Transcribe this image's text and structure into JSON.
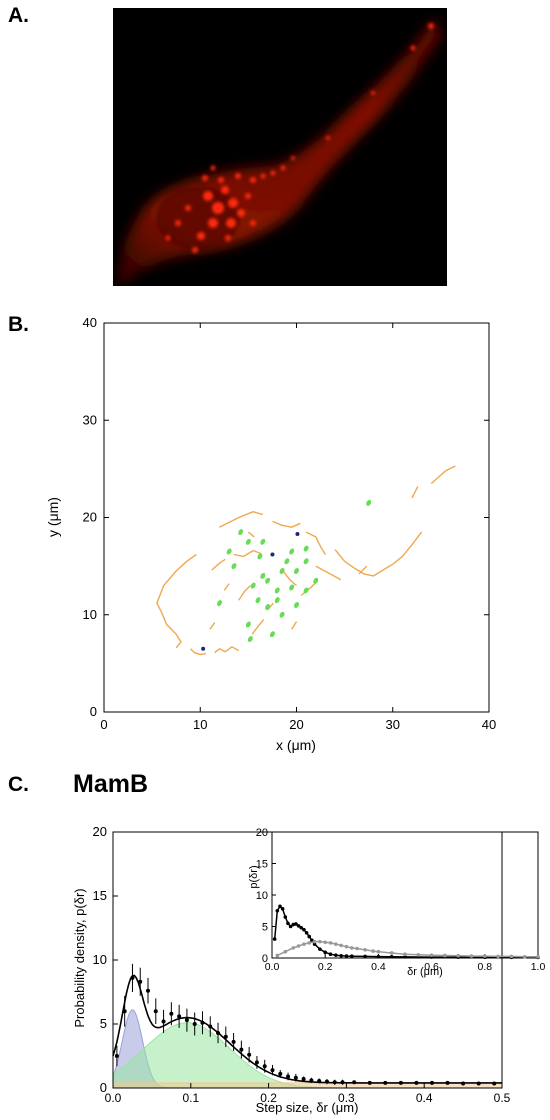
{
  "panels": {
    "a_label": "A.",
    "b_label": "B.",
    "c_label": "C.",
    "c_title": "MamB"
  },
  "chart_data": [
    {
      "id": "B",
      "type": "scatter",
      "title": "",
      "xlabel": "x (μm)",
      "ylabel": "y (μm)",
      "xlim": [
        0,
        40
      ],
      "ylim": [
        0,
        40
      ],
      "xticks": [
        0,
        10,
        20,
        30,
        40
      ],
      "yticks": [
        0,
        10,
        20,
        30,
        40
      ],
      "grid": false,
      "series": [
        {
          "color": "#f0a850",
          "kind": "trajectories",
          "tracks": [
            [
              [
                5.5,
                11.2
              ],
              [
                6.0,
                10.2
              ],
              [
                6.5,
                9.0
              ],
              [
                7.5,
                8.0
              ],
              [
                8.0,
                7.2
              ],
              [
                7.5,
                6.6
              ]
            ],
            [
              [
                5.5,
                11.2
              ],
              [
                6.2,
                13.0
              ],
              [
                7.5,
                14.5
              ],
              [
                8.6,
                15.5
              ],
              [
                9.6,
                16.2
              ]
            ],
            [
              [
                9.0,
                6.5
              ],
              [
                9.4,
                6.1
              ],
              [
                10.0,
                5.9
              ],
              [
                10.6,
                6.0
              ]
            ],
            [
              [
                11.5,
                6.1
              ],
              [
                12.0,
                6.5
              ],
              [
                12.6,
                6.2
              ],
              [
                13.3,
                6.7
              ],
              [
                14.0,
                6.3
              ]
            ],
            [
              [
                12.0,
                19.0
              ],
              [
                13.0,
                19.5
              ],
              [
                14.0,
                20.0
              ],
              [
                15.5,
                20.6
              ],
              [
                16.5,
                20.3
              ]
            ],
            [
              [
                11.2,
                14.6
              ],
              [
                12.0,
                15.3
              ],
              [
                12.6,
                15.7
              ]
            ],
            [
              [
                13.5,
                16.2
              ],
              [
                14.5,
                16.0
              ],
              [
                15.5,
                16.6
              ],
              [
                16.3,
                16.3
              ]
            ],
            [
              [
                14.0,
                11.5
              ],
              [
                14.6,
                12.4
              ],
              [
                15.2,
                13.0
              ]
            ],
            [
              [
                15.4,
                8.0
              ],
              [
                16.0,
                8.8
              ],
              [
                16.6,
                9.5
              ]
            ],
            [
              [
                17.5,
                19.6
              ],
              [
                18.5,
                19.2
              ],
              [
                19.5,
                19.0
              ],
              [
                20.4,
                19.4
              ]
            ],
            [
              [
                18.6,
                14.5
              ],
              [
                19.3,
                13.6
              ],
              [
                20.0,
                13.0
              ]
            ],
            [
              [
                20.5,
                12.0
              ],
              [
                21.5,
                12.8
              ],
              [
                22.2,
                13.5
              ]
            ],
            [
              [
                21.0,
                18.5
              ],
              [
                22.0,
                18.0
              ],
              [
                22.5,
                17.0
              ],
              [
                23.0,
                16.2
              ]
            ],
            [
              [
                22.0,
                15.0
              ],
              [
                23.5,
                14.2
              ],
              [
                24.6,
                13.6
              ]
            ],
            [
              [
                24.0,
                16.7
              ],
              [
                25.0,
                15.5
              ],
              [
                26.0,
                14.8
              ],
              [
                27.0,
                14.2
              ],
              [
                28.0,
                14.0
              ],
              [
                29.0,
                14.6
              ],
              [
                30.0,
                15.2
              ],
              [
                31.0,
                16.0
              ],
              [
                32.0,
                17.2
              ],
              [
                33.0,
                18.5
              ]
            ],
            [
              [
                26.5,
                14.2
              ],
              [
                27.3,
                15.0
              ]
            ],
            [
              [
                32.0,
                22.0
              ],
              [
                32.6,
                23.2
              ]
            ],
            [
              [
                34.0,
                23.5
              ],
              [
                35.5,
                24.8
              ],
              [
                36.5,
                25.3
              ]
            ],
            [
              [
                11.0,
                8.5
              ],
              [
                11.5,
                9.2
              ]
            ],
            [
              [
                12.5,
                12.5
              ],
              [
                13.0,
                13.2
              ]
            ],
            [
              [
                17.0,
                10.5
              ],
              [
                17.6,
                11.2
              ]
            ],
            [
              [
                19.5,
                8.5
              ],
              [
                20.0,
                9.3
              ]
            ],
            [
              [
                15.0,
                18.5
              ],
              [
                15.6,
                18.0
              ]
            ]
          ]
        },
        {
          "color": "#66dd55",
          "kind": "short tracks",
          "points": [
            [
              14.2,
              18.5
            ],
            [
              13.0,
              16.5
            ],
            [
              15.0,
              17.5
            ],
            [
              16.2,
              16.0
            ],
            [
              16.5,
              14.0
            ],
            [
              15.5,
              13.0
            ],
            [
              17.0,
              13.5
            ],
            [
              18.0,
              12.5
            ],
            [
              18.5,
              14.5
            ],
            [
              19.0,
              15.5
            ],
            [
              20.0,
              14.5
            ],
            [
              19.5,
              12.8
            ],
            [
              18.0,
              11.5
            ],
            [
              17.0,
              10.8
            ],
            [
              18.5,
              10.0
            ],
            [
              20.0,
              11.0
            ],
            [
              21.0,
              12.5
            ],
            [
              22.0,
              13.5
            ],
            [
              16.0,
              11.5
            ],
            [
              15.0,
              9.0
            ],
            [
              17.5,
              8.0
            ],
            [
              19.5,
              16.5
            ],
            [
              21.0,
              15.5
            ],
            [
              27.5,
              21.5
            ],
            [
              15.2,
              7.5
            ],
            [
              13.5,
              15.0
            ],
            [
              21.0,
              16.8
            ],
            [
              12.0,
              11.2
            ],
            [
              16.5,
              17.5
            ]
          ]
        },
        {
          "color": "#1a2a7a",
          "kind": "immobile",
          "points": [
            [
              10.3,
              6.5
            ],
            [
              17.5,
              16.2
            ],
            [
              20.1,
              18.3
            ]
          ]
        }
      ]
    },
    {
      "id": "C-main",
      "type": "line",
      "title": "MamB",
      "xlabel": "Step size, δr (μm)",
      "ylabel": "Probability density, p(δr)",
      "xlim": [
        0,
        0.5
      ],
      "ylim": [
        0,
        20
      ],
      "xticks": [
        0.0,
        0.1,
        0.2,
        0.3,
        0.4,
        0.5
      ],
      "yticks": [
        0,
        5,
        10,
        15,
        20
      ],
      "components": [
        {
          "color": "#9aa0d8",
          "shape": "gaussian",
          "mean": 0.025,
          "sd": 0.013,
          "height": 6.1
        },
        {
          "color": "#99e6a0",
          "shape": "gaussian",
          "mean": 0.095,
          "sd": 0.055,
          "height": 5.1
        },
        {
          "color": "#f0c890",
          "shape": "flat",
          "height": 0.4,
          "x_end": 0.5
        }
      ],
      "data_points": {
        "x": [
          0.005,
          0.015,
          0.025,
          0.035,
          0.045,
          0.055,
          0.065,
          0.075,
          0.085,
          0.095,
          0.105,
          0.115,
          0.125,
          0.135,
          0.145,
          0.155,
          0.165,
          0.175,
          0.185,
          0.195,
          0.205,
          0.215,
          0.225,
          0.235,
          0.245,
          0.255,
          0.265,
          0.275,
          0.285,
          0.295,
          0.31,
          0.33,
          0.35,
          0.37,
          0.39,
          0.41,
          0.43,
          0.45,
          0.47,
          0.49
        ],
        "y": [
          2.5,
          6.0,
          8.6,
          8.3,
          7.6,
          6.0,
          5.2,
          5.8,
          5.6,
          5.3,
          5.0,
          5.1,
          4.8,
          4.3,
          4.0,
          3.6,
          3.0,
          2.6,
          2.0,
          1.7,
          1.4,
          1.1,
          0.9,
          0.8,
          0.7,
          0.6,
          0.55,
          0.5,
          0.45,
          0.45,
          0.45,
          0.4,
          0.4,
          0.4,
          0.4,
          0.4,
          0.4,
          0.35,
          0.35,
          0.35
        ],
        "err": [
          0.8,
          1.2,
          1.1,
          1.1,
          1.0,
          1.0,
          0.9,
          0.9,
          0.9,
          0.9,
          0.9,
          0.9,
          0.8,
          0.8,
          0.8,
          0.7,
          0.7,
          0.6,
          0.5,
          0.5,
          0.4,
          0.3,
          0.3,
          0.3,
          0.2,
          0.2,
          0.2,
          0.2,
          0.2,
          0.2,
          0.1,
          0.1,
          0.1,
          0.1,
          0.1,
          0.1,
          0.1,
          0.1,
          0.1,
          0.1
        ]
      }
    },
    {
      "id": "C-inset",
      "type": "line",
      "title": "",
      "xlabel": "δr (μm)",
      "ylabel": "p(δr)",
      "xlim": [
        0,
        1.0
      ],
      "ylim": [
        0,
        20
      ],
      "xticks": [
        0.0,
        0.2,
        0.4,
        0.6,
        0.8,
        1.0
      ],
      "yticks": [
        0,
        5,
        10,
        15,
        20
      ],
      "series": [
        {
          "color": "#000000",
          "x": [
            0.01,
            0.02,
            0.03,
            0.04,
            0.05,
            0.06,
            0.07,
            0.08,
            0.09,
            0.1,
            0.11,
            0.12,
            0.13,
            0.14,
            0.15,
            0.16,
            0.18,
            0.2,
            0.22,
            0.24,
            0.26,
            0.28,
            0.3,
            0.35,
            0.4,
            0.45,
            0.5,
            0.6,
            0.7,
            0.8,
            0.9,
            1.0
          ],
          "y": [
            3.0,
            7.5,
            8.2,
            7.8,
            6.5,
            5.5,
            5.0,
            5.3,
            5.4,
            5.1,
            4.8,
            4.5,
            4.0,
            3.4,
            2.8,
            2.2,
            1.4,
            0.9,
            0.6,
            0.45,
            0.35,
            0.3,
            0.28,
            0.25,
            0.22,
            0.2,
            0.18,
            0.15,
            0.13,
            0.12,
            0.1,
            0.1
          ]
        },
        {
          "color": "#999999",
          "x": [
            0.02,
            0.05,
            0.08,
            0.1,
            0.12,
            0.14,
            0.16,
            0.18,
            0.2,
            0.22,
            0.24,
            0.26,
            0.28,
            0.3,
            0.32,
            0.35,
            0.38,
            0.4,
            0.45,
            0.5,
            0.55,
            0.6,
            0.65,
            0.7,
            0.75,
            0.8,
            0.85,
            0.9,
            0.95,
            1.0
          ],
          "y": [
            0.4,
            1.0,
            1.6,
            1.9,
            2.2,
            2.4,
            2.6,
            2.6,
            2.5,
            2.4,
            2.2,
            2.0,
            1.8,
            1.6,
            1.5,
            1.3,
            1.1,
            1.0,
            0.8,
            0.6,
            0.5,
            0.45,
            0.4,
            0.35,
            0.3,
            0.3,
            0.25,
            0.25,
            0.2,
            0.2
          ]
        }
      ]
    }
  ]
}
